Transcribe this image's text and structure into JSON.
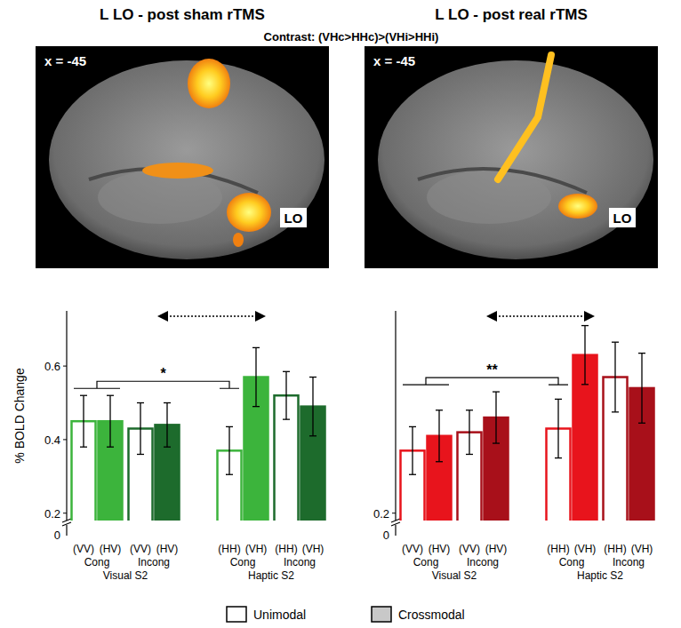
{
  "subtitle": "Contrast: (VHc>HHc)>(VHi>HHi)",
  "chart_data": [
    {
      "type": "bar",
      "title": "L LO - post sham rTMS",
      "slice_label": "x = -45",
      "region_label": "LO",
      "ylabel": "% BOLD Change",
      "ylim": [
        0.18,
        0.75
      ],
      "yticks": [
        0.2,
        0.4,
        0.6
      ],
      "y_break_label": "0",
      "categories": [
        "(VV)",
        "(HV)",
        "(VV)",
        "(HV)",
        "(HH)",
        "(VH)",
        "(HH)",
        "(VH)"
      ],
      "groups": [
        "Cong",
        "Incong",
        "Cong",
        "Incong"
      ],
      "supergroups": [
        "Visual S2",
        "Haptic S2"
      ],
      "colors": [
        "#3cb43c",
        "#3cb43c",
        "#1d6b2c",
        "#1d6b2c",
        "#3cb43c",
        "#3cb43c",
        "#1d6b2c",
        "#1d6b2c"
      ],
      "series": [
        {
          "name": "Unimodal",
          "color": "#ffffff",
          "values": [
            0.45,
            null,
            0.43,
            null,
            0.37,
            null,
            0.52,
            null
          ],
          "errors": [
            0.07,
            null,
            0.07,
            null,
            0.065,
            null,
            0.065,
            null
          ]
        },
        {
          "name": "Crossmodal",
          "color": "#c8c8c8",
          "values": [
            null,
            0.45,
            null,
            0.44,
            null,
            0.57,
            null,
            0.49
          ],
          "errors": [
            null,
            0.07,
            null,
            0.06,
            null,
            0.08,
            null,
            0.08
          ]
        }
      ],
      "significance": {
        "text": "*",
        "left": [
          0,
          1
        ],
        "right": [
          4
        ]
      }
    },
    {
      "type": "bar",
      "title": "L LO - post real rTMS",
      "slice_label": "x = -45",
      "region_label": "LO",
      "ylim": [
        0.18,
        0.75
      ],
      "yticks": [
        0.2
      ],
      "y_break_label": "0",
      "legend": "bottom",
      "categories": [
        "(VV)",
        "(HV)",
        "(VV)",
        "(HV)",
        "(HH)",
        "(VH)",
        "(HH)",
        "(VH)"
      ],
      "groups": [
        "Cong",
        "Incong",
        "Cong",
        "Incong"
      ],
      "supergroups": [
        "Visual S2",
        "Haptic S2"
      ],
      "colors": [
        "#e8141c",
        "#e8141c",
        "#a8101a",
        "#a8101a",
        "#e8141c",
        "#e8141c",
        "#a8101a",
        "#a8101a"
      ],
      "series": [
        {
          "name": "Unimodal",
          "color": "#ffffff",
          "values": [
            0.37,
            null,
            0.42,
            null,
            0.43,
            null,
            0.57,
            null
          ],
          "errors": [
            0.065,
            null,
            0.06,
            null,
            0.08,
            null,
            0.095,
            null
          ]
        },
        {
          "name": "Crossmodal",
          "color": "#c8c8c8",
          "values": [
            null,
            0.41,
            null,
            0.46,
            null,
            0.63,
            null,
            0.54
          ],
          "errors": [
            null,
            0.07,
            null,
            0.07,
            null,
            0.08,
            null,
            0.095
          ]
        }
      ],
      "significance": {
        "text": "**",
        "left": [
          0,
          1
        ],
        "right": [
          4
        ]
      }
    }
  ]
}
